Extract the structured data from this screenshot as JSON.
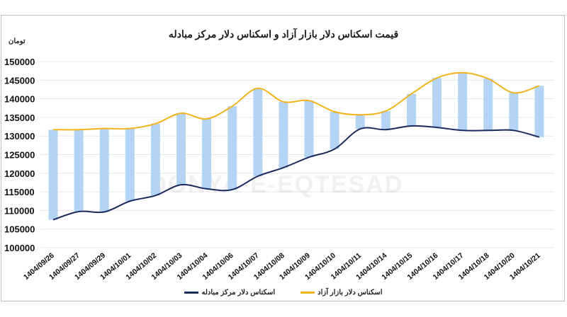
{
  "chart_data": {
    "type": "line",
    "title": "قیمت اسکناس دلار بازار آزاد و اسکناس دلار مرکز مبادله",
    "ylabel": "تومان",
    "xlabel": "",
    "ylim": [
      100000,
      150000
    ],
    "yticks": [
      100000,
      105000,
      110000,
      115000,
      120000,
      125000,
      130000,
      135000,
      140000,
      145000,
      150000
    ],
    "grid": true,
    "legend_position": "bottom",
    "categories": [
      "1404/09/26",
      "1404/09/27",
      "1404/09/29",
      "1404/10/01",
      "1404/10/02",
      "1404/10/03",
      "1404/10/04",
      "1404/10/06",
      "1404/10/07",
      "1404/10/08",
      "1404/10/09",
      "1404/10/10",
      "1404/10/11",
      "1404/10/14",
      "1404/10/15",
      "1404/10/16",
      "1404/10/17",
      "1404/10/18",
      "1404/10/20",
      "1404/10/21"
    ],
    "series": [
      {
        "name": "اسکناس دلار بازار آزاد",
        "color": "#f2b31b",
        "values": [
          131700,
          131700,
          132000,
          132000,
          133300,
          136100,
          134600,
          138000,
          142800,
          139200,
          139500,
          136500,
          135700,
          136700,
          141300,
          145600,
          147000,
          145400,
          141600,
          143500
        ]
      },
      {
        "name": "اسکناس دلار مرکز مبادله",
        "color": "#1b2a5e",
        "values": [
          107500,
          109700,
          109600,
          112500,
          114000,
          116900,
          115800,
          115600,
          119200,
          121500,
          124300,
          126500,
          131900,
          131700,
          132700,
          132300,
          131500,
          131500,
          131500,
          129700
        ]
      }
    ],
    "spread_bars": {
      "color": "#b3d4f5",
      "description": "floating bars spanning between the two series at each date"
    },
    "watermark": "DONYA-E-EQTESAD"
  },
  "legend": {
    "free_market": "اسکناس دلار بازار آزاد",
    "exchange_center": "اسکناس دلار مرکز مبادله"
  }
}
